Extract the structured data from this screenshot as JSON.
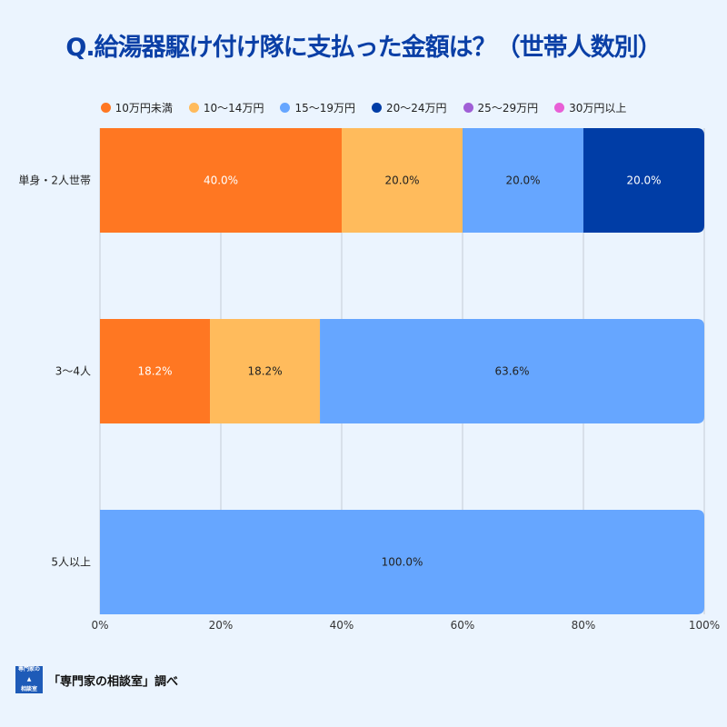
{
  "chart_data": {
    "type": "bar",
    "orientation": "horizontal",
    "stacked": true,
    "title": "Q.給湯器駆け付け隊に支払った金額は？（世帯人数別）",
    "categories": [
      "単身・2人世帯",
      "3〜4人",
      "5人以上"
    ],
    "series": [
      {
        "name": "10万円未満",
        "color": "#ff7722",
        "values": [
          40.0,
          18.2,
          0
        ]
      },
      {
        "name": "10〜14万円",
        "color": "#ffbb5c",
        "values": [
          20.0,
          18.2,
          0
        ]
      },
      {
        "name": "15〜19万円",
        "color": "#66a6ff",
        "values": [
          20.0,
          63.6,
          100.0
        ]
      },
      {
        "name": "20〜24万円",
        "color": "#003da6",
        "values": [
          20.0,
          0,
          0
        ]
      },
      {
        "name": "25〜29万円",
        "color": "#a05fd6",
        "values": [
          0,
          0,
          0
        ]
      },
      {
        "name": "30万円以上",
        "color": "#e85fd6",
        "values": [
          0,
          0,
          0
        ]
      }
    ],
    "xlim": [
      0,
      100
    ],
    "xticks": [
      "0%",
      "20%",
      "40%",
      "60%",
      "80%",
      "100%"
    ],
    "grid": true,
    "legend": "top"
  },
  "footer": {
    "logo_text": "専門家の相談室",
    "logo_lines": [
      "専門家の",
      "相談室"
    ],
    "source": "「専門家の相談室」調べ"
  }
}
